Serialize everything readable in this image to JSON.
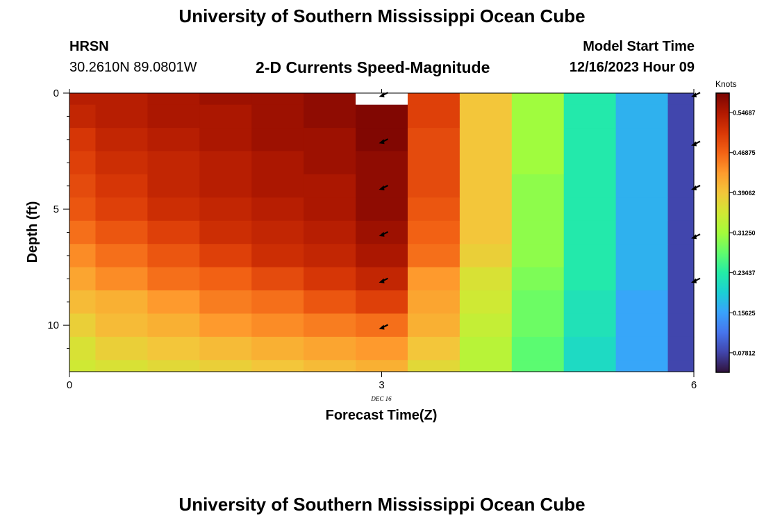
{
  "page": {
    "main_title": "University of Southern Mississippi Ocean Cube",
    "station": "HRSN",
    "coordinates": "30.2610N  89.0801W",
    "plot_title": "2-D Currents Speed-Magnitude",
    "model_start_label": "Model Start Time",
    "model_start_value": "12/16/2023 Hour 09",
    "second_title": "University of Southern Mississippi Ocean Cube"
  },
  "chart_data": {
    "type": "heatmap",
    "title": "2-D Currents Speed-Magnitude",
    "xlabel": "Forecast Time(Z)",
    "ylabel": "Depth (ft)",
    "x_sublabel": "DEC 16",
    "xlim": [
      0,
      6
    ],
    "ylim": [
      12,
      0
    ],
    "x_ticks": [
      0,
      3,
      6
    ],
    "x_tick_labels": [
      "0",
      "3",
      "6"
    ],
    "y_ticks": [
      0,
      5,
      10
    ],
    "y_tick_labels": [
      "0",
      "5",
      "10"
    ],
    "y_minor_ticks": [
      1,
      2,
      3,
      4,
      6,
      7,
      8,
      9,
      11
    ],
    "x_edges": [
      0,
      0.25,
      0.75,
      1.25,
      1.75,
      2.25,
      2.75,
      3.25,
      3.75,
      4.25,
      4.75,
      5.25,
      5.75,
      6
    ],
    "y_edges": [
      0,
      0.5,
      1.5,
      2.5,
      3.5,
      4.5,
      5.5,
      6.5,
      7.5,
      8.5,
      9.5,
      10.5,
      11.5,
      12
    ],
    "z_units": "Knots",
    "z_range": [
      0.04,
      0.585
    ],
    "missing_cells": [
      [
        0,
        6
      ]
    ],
    "values": [
      [
        0.54,
        0.54,
        0.55,
        0.56,
        0.56,
        0.57,
        null,
        0.5,
        0.39,
        0.31,
        0.23,
        0.17,
        0.08
      ],
      [
        0.53,
        0.54,
        0.55,
        0.55,
        0.56,
        0.57,
        0.58,
        0.5,
        0.39,
        0.31,
        0.23,
        0.17,
        0.08
      ],
      [
        0.51,
        0.53,
        0.54,
        0.55,
        0.56,
        0.56,
        0.58,
        0.49,
        0.39,
        0.31,
        0.23,
        0.17,
        0.08
      ],
      [
        0.5,
        0.52,
        0.53,
        0.54,
        0.55,
        0.56,
        0.57,
        0.49,
        0.39,
        0.31,
        0.23,
        0.17,
        0.08
      ],
      [
        0.49,
        0.51,
        0.53,
        0.54,
        0.55,
        0.55,
        0.57,
        0.49,
        0.39,
        0.3,
        0.23,
        0.17,
        0.08
      ],
      [
        0.48,
        0.5,
        0.52,
        0.53,
        0.54,
        0.55,
        0.57,
        0.48,
        0.39,
        0.3,
        0.23,
        0.17,
        0.08
      ],
      [
        0.46,
        0.48,
        0.5,
        0.52,
        0.53,
        0.54,
        0.56,
        0.47,
        0.39,
        0.3,
        0.23,
        0.17,
        0.08
      ],
      [
        0.44,
        0.46,
        0.48,
        0.5,
        0.52,
        0.53,
        0.55,
        0.46,
        0.38,
        0.3,
        0.23,
        0.17,
        0.08
      ],
      [
        0.42,
        0.44,
        0.46,
        0.47,
        0.49,
        0.51,
        0.53,
        0.43,
        0.36,
        0.29,
        0.23,
        0.17,
        0.08
      ],
      [
        0.4,
        0.41,
        0.43,
        0.45,
        0.46,
        0.48,
        0.5,
        0.42,
        0.35,
        0.28,
        0.22,
        0.16,
        0.08
      ],
      [
        0.38,
        0.4,
        0.41,
        0.43,
        0.44,
        0.45,
        0.46,
        0.41,
        0.34,
        0.28,
        0.22,
        0.16,
        0.08
      ],
      [
        0.36,
        0.38,
        0.39,
        0.4,
        0.41,
        0.42,
        0.43,
        0.39,
        0.33,
        0.27,
        0.21,
        0.16,
        0.08
      ],
      [
        0.35,
        0.36,
        0.37,
        0.38,
        0.39,
        0.4,
        0.41,
        0.37,
        0.33,
        0.27,
        0.21,
        0.16,
        0.08
      ]
    ],
    "arrows": [
      {
        "x": 3,
        "depth": 0.1
      },
      {
        "x": 3,
        "depth": 2.1
      },
      {
        "x": 3,
        "depth": 4.1
      },
      {
        "x": 3,
        "depth": 6.1
      },
      {
        "x": 3,
        "depth": 8.1
      },
      {
        "x": 3,
        "depth": 10.1
      },
      {
        "x": 6,
        "depth": 0.1
      },
      {
        "x": 6,
        "depth": 2.2
      },
      {
        "x": 6,
        "depth": 4.1
      },
      {
        "x": 6,
        "depth": 6.2
      },
      {
        "x": 6,
        "depth": 8.1
      }
    ],
    "colorbar": {
      "label": "Knots",
      "tick_values": [
        0.54687,
        0.46875,
        0.39062,
        0.3125,
        0.23437,
        0.15625,
        0.07812
      ],
      "tick_labels": [
        "0.54687",
        "0.46875",
        "0.39062",
        "0.31250",
        "0.23437",
        "0.15625",
        "0.07812"
      ]
    },
    "colormap": [
      "#30123b",
      "#4145ab",
      "#4675ed",
      "#39a2fc",
      "#1bcfd4",
      "#24eca6",
      "#61fc6c",
      "#a4fc3b",
      "#d1e834",
      "#f3c63a",
      "#fe9b2d",
      "#f36315",
      "#d93806",
      "#b11901",
      "#7a0402"
    ],
    "missing_color": "#ffffff",
    "grid": false,
    "legend": "colorbar right"
  }
}
